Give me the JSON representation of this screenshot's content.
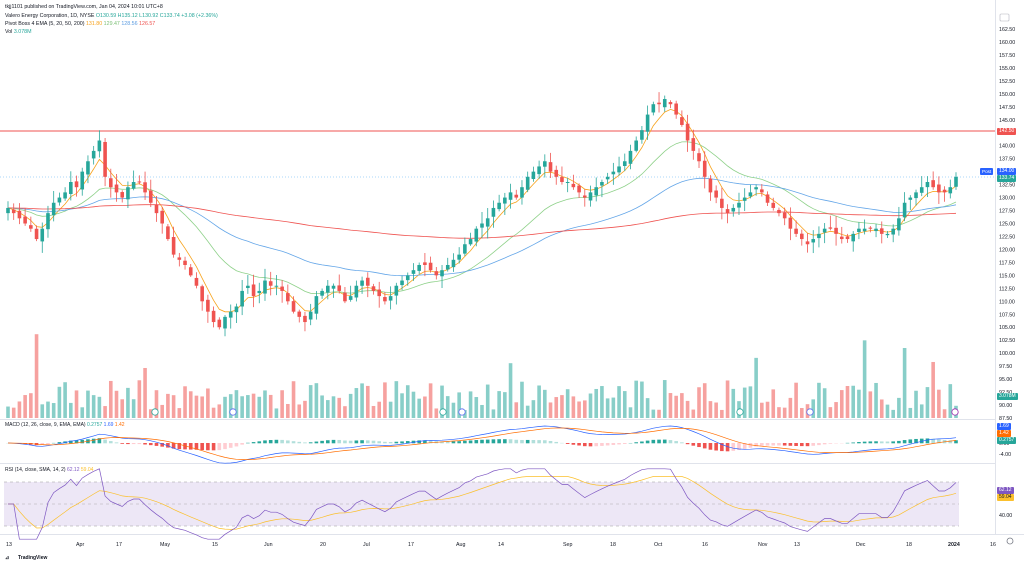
{
  "publish_line": "tkjj1101 published on TradingView.com, Jan 04, 2024 10:01 UTC+8",
  "symbol": {
    "name": "Valero Energy Corporation, 1D, NYSE",
    "ohlc": "O130.59 H135.12 L130.92 C133.74 +3.08 (+2.36%)",
    "colors": {
      "up": "#26a69a",
      "down": "#ef5350"
    }
  },
  "indicator": {
    "name": "Pivot Boss 4 EMA (5, 20, 50, 200)",
    "values": [
      "131.80",
      "129.47",
      "128.56",
      "126.57"
    ],
    "colors": [
      "#f7a21b",
      "#8fd18a",
      "#64a6e8",
      "#ef5350"
    ]
  },
  "vol": {
    "name": "Vol",
    "value": "3.078M"
  },
  "macd": {
    "label": "MACD (12, 26, close, 9, EMA, EMA)",
    "values": [
      "0.2757",
      "1.69",
      "1.42"
    ]
  },
  "rsi": {
    "label": "RSI (14, close, SMA, 14, 2)",
    "values": [
      "62.12",
      "59.04"
    ]
  },
  "price_axis": [
    "162.50",
    "160.00",
    "157.50",
    "155.00",
    "152.50",
    "150.00",
    "147.50",
    "145.00",
    "140.00",
    "137.50",
    "132.50",
    "130.00",
    "127.50",
    "125.00",
    "122.50",
    "120.00",
    "117.50",
    "115.00",
    "112.50",
    "110.00",
    "107.50",
    "105.00",
    "102.50",
    "100.00",
    "97.50",
    "95.00",
    "92.50",
    "90.00",
    "87.50"
  ],
  "price_tags": {
    "horizontal_line": "142.50",
    "post_label": "Post",
    "post_value": "134.00",
    "last": "133.74",
    "vol": "3.078M"
  },
  "macd_axis": [
    "4.00",
    "0.00",
    "-4.00"
  ],
  "macd_tags": [
    "1.69",
    "1.42",
    "0.2757"
  ],
  "rsi_axis": [
    "40.00"
  ],
  "rsi_tags": [
    "62.12",
    "59.04"
  ],
  "time_axis": [
    "13",
    "Apr",
    "17",
    "May",
    "15",
    "Jun",
    "20",
    "Jul",
    "17",
    "Aug",
    "14",
    "Sep",
    "18",
    "Oct",
    "16",
    "Nov",
    "13",
    "Dec",
    "18",
    "2024",
    "16"
  ],
  "branding": "TradingView",
  "currency_icon": "currency-icon",
  "settings_icon": "settings-icon",
  "chart_data": {
    "type": "candlestick",
    "x_range": [
      "2023-03-13",
      "2024-01-16"
    ],
    "ylim": [
      87.5,
      162.5
    ],
    "horizontal_line": 142.5,
    "closes": [
      128,
      127,
      126,
      125,
      124,
      122,
      124,
      127,
      129,
      130,
      131,
      133,
      132,
      135,
      137,
      139,
      141,
      134,
      132,
      131,
      130,
      132,
      133,
      133,
      131,
      129,
      127,
      125,
      122,
      119,
      118,
      117,
      115,
      113,
      110,
      108,
      106,
      105,
      107,
      108,
      109,
      112,
      113,
      111,
      112,
      114,
      113,
      113,
      112,
      110,
      108,
      107,
      106,
      108,
      111,
      112,
      113,
      113,
      112,
      110,
      111,
      113,
      114,
      113,
      112,
      111,
      110,
      111,
      113,
      114,
      115,
      116,
      117,
      117,
      116,
      115,
      116,
      117,
      118,
      119,
      121,
      122,
      124,
      125,
      126,
      128,
      129,
      130,
      131,
      130,
      132,
      134,
      135,
      136,
      137,
      135,
      134,
      133,
      133,
      132,
      131,
      130,
      131,
      132,
      133,
      134,
      135,
      136,
      137,
      139,
      141,
      143,
      146,
      148,
      148,
      149,
      148,
      146,
      144,
      141,
      139,
      137,
      134,
      131,
      130,
      128,
      127,
      128,
      129,
      130,
      131,
      132,
      131,
      129,
      128,
      127,
      126,
      124,
      123,
      122,
      121,
      122,
      123,
      124,
      124,
      123,
      122,
      122,
      123,
      124,
      124,
      124,
      124,
      123,
      123,
      124,
      126,
      129,
      130,
      131,
      132,
      133,
      132,
      131,
      131,
      132,
      134
    ],
    "volume_note": "relative volume bars",
    "ema": {
      "5": 131.8,
      "20": 129.47,
      "50": 128.56,
      "200": 126.57
    }
  }
}
